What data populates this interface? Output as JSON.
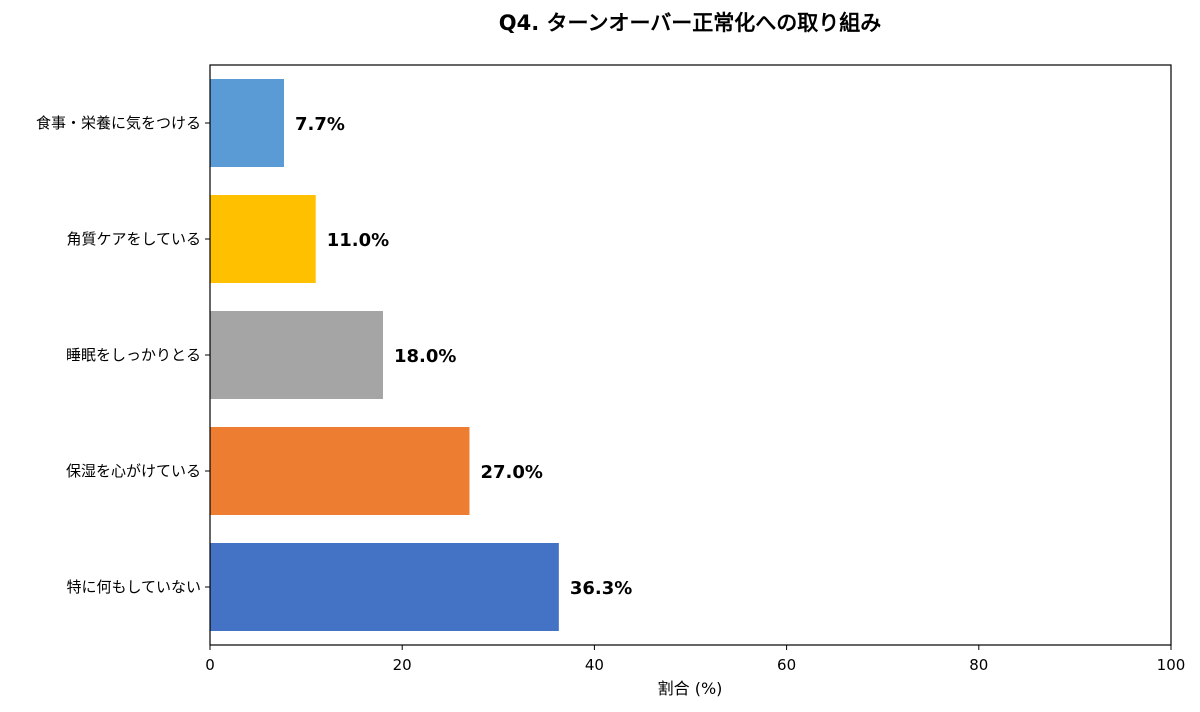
{
  "chart_data": {
    "type": "bar",
    "orientation": "horizontal",
    "title": "Q4. ターンオーバー正常化への取り組み",
    "xlabel": "割合 (%)",
    "ylabel": "",
    "xlim": [
      0,
      100
    ],
    "xticks": [
      0,
      20,
      40,
      60,
      80,
      100
    ],
    "xtick_labels": [
      "0",
      "20",
      "40",
      "60",
      "80",
      "100"
    ],
    "grid": false,
    "categories": [
      "特に何もしていない",
      "保湿を心がけている",
      "睡眠をしっかりとる",
      "角質ケアをしている",
      "食事・栄養に気をつける"
    ],
    "values": [
      36.3,
      27.0,
      18.0,
      11.0,
      7.7
    ],
    "value_labels": [
      "36.3%",
      "27.0%",
      "18.0%",
      "11.0%",
      "7.7%"
    ],
    "colors": [
      "#4472c4",
      "#ed7d31",
      "#a5a5a5",
      "#ffc000",
      "#5b9bd5"
    ]
  }
}
